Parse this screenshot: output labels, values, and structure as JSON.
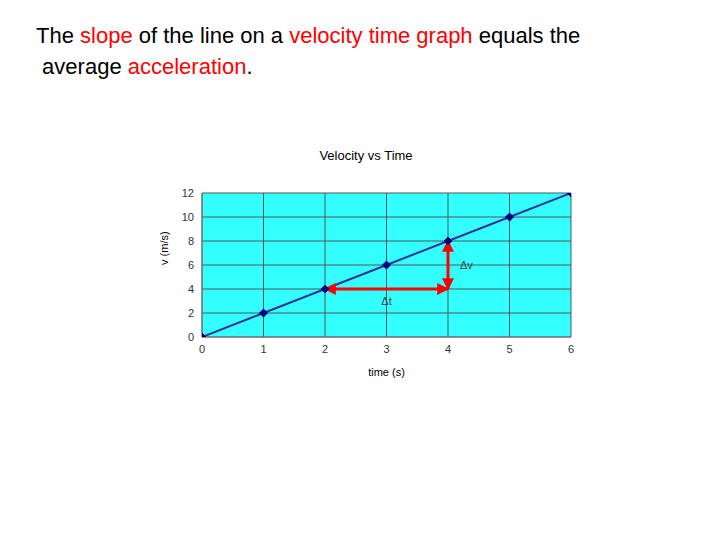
{
  "heading": {
    "lines": [
      [
        {
          "text": "The "
        },
        {
          "text": "slope",
          "color": "#ff0000"
        },
        {
          "text": " of the line on a "
        },
        {
          "text": "velocity time graph",
          "color": "#ff0000"
        },
        {
          "text": " equals the"
        }
      ],
      [
        {
          "text": " average "
        },
        {
          "text": "acceleration",
          "color": "#ff0000"
        },
        {
          "text": "."
        }
      ]
    ]
  },
  "chart_data": {
    "type": "line",
    "title": "Velocity vs Time",
    "x_label": "time (s)",
    "y_label": "v (m/s)",
    "x": [
      0,
      1,
      2,
      3,
      4,
      5,
      6
    ],
    "values": [
      0,
      2,
      4,
      6,
      8,
      10,
      12
    ],
    "color": "#333399",
    "marker": "diamond",
    "xlim": [
      0,
      6
    ],
    "xticks": [
      0,
      1,
      2,
      3,
      4,
      5,
      6
    ],
    "ylim": [
      0,
      12
    ],
    "yticks": [
      0,
      2,
      4,
      6,
      8,
      10,
      12
    ],
    "grid": true,
    "annotations": [
      {
        "label": "Δt",
        "x1": 2,
        "y1": 4,
        "x2": 4,
        "y2": 4,
        "color": "#ff0000"
      },
      {
        "label": "Δv",
        "x1": 4,
        "y1": 4,
        "x2": 4,
        "y2": 8,
        "color": "#ff0000"
      }
    ]
  }
}
